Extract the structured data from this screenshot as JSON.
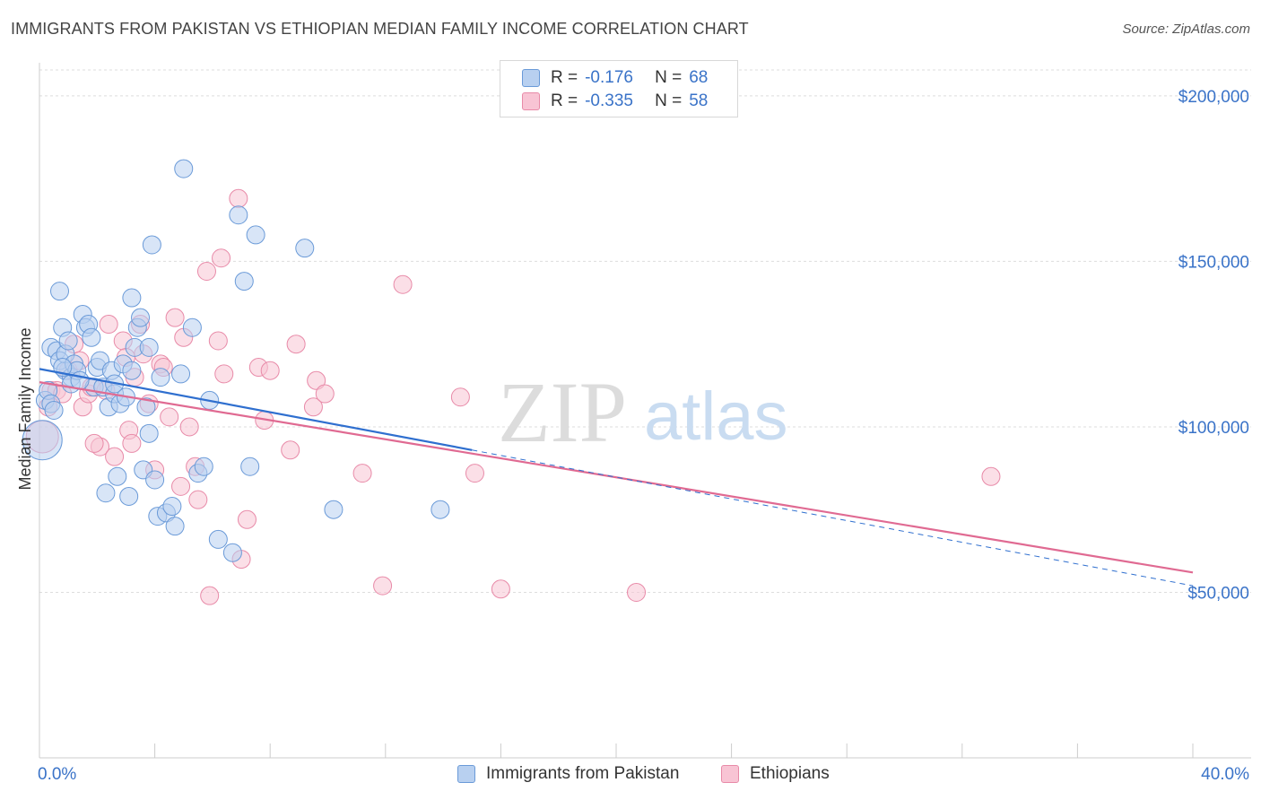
{
  "title": "IMMIGRANTS FROM PAKISTAN VS ETHIOPIAN MEDIAN FAMILY INCOME CORRELATION CHART",
  "source": "Source: ZipAtlas.com",
  "watermark": {
    "zip": "ZIP",
    "atlas": "atlas"
  },
  "legend": {
    "pakistan": {
      "r_label": "R =",
      "r_value": "-0.176",
      "n_label": "N =",
      "n_value": "68"
    },
    "ethiopians": {
      "r_label": "R =",
      "r_value": "-0.335",
      "n_label": "N =",
      "n_value": "58"
    }
  },
  "colors": {
    "pakistan_fill": "#b8d0f0",
    "pakistan_stroke": "#6a9ad8",
    "pakistan_line": "#2f6fcf",
    "ethiopians_fill": "#f8c4d4",
    "ethiopians_stroke": "#e88aa8",
    "ethiopians_line": "#e06a92",
    "axis_text": "#3a73c8"
  },
  "chart_data": {
    "type": "scatter",
    "title": "IMMIGRANTS FROM PAKISTAN VS ETHIOPIAN MEDIAN FAMILY INCOME CORRELATION CHART",
    "xlabel": "",
    "ylabel": "Median Family Income",
    "xlim": [
      0,
      40
    ],
    "ylim": [
      0,
      210000
    ],
    "x_ticks": [
      "0.0%",
      "40.0%"
    ],
    "y_ticks": [
      {
        "value": 50000,
        "label": "$50,000"
      },
      {
        "value": 100000,
        "label": "$100,000"
      },
      {
        "value": 150000,
        "label": "$150,000"
      },
      {
        "value": 200000,
        "label": "$200,000"
      }
    ],
    "grid": true,
    "legend_position": "top-center",
    "series": [
      {
        "name": "Immigrants from Pakistan",
        "r": -0.176,
        "n": 68,
        "trend": {
          "x": [
            0,
            15
          ],
          "y": [
            117500,
            93000
          ]
        },
        "trend_dashed": {
          "x": [
            15,
            40
          ],
          "y": [
            93000,
            52000
          ]
        },
        "points": [
          [
            0.1,
            96000
          ],
          [
            0.2,
            108000
          ],
          [
            0.3,
            111000
          ],
          [
            0.4,
            107000
          ],
          [
            0.4,
            124000
          ],
          [
            0.5,
            105000
          ],
          [
            0.6,
            123000
          ],
          [
            0.7,
            120000
          ],
          [
            0.7,
            141000
          ],
          [
            0.8,
            130000
          ],
          [
            0.9,
            117000
          ],
          [
            0.9,
            122000
          ],
          [
            1.1,
            115000
          ],
          [
            1.1,
            113000
          ],
          [
            1.2,
            119000
          ],
          [
            1.3,
            117000
          ],
          [
            1.5,
            134000
          ],
          [
            1.6,
            130000
          ],
          [
            1.7,
            131000
          ],
          [
            1.8,
            127000
          ],
          [
            1.9,
            112000
          ],
          [
            2.0,
            118000
          ],
          [
            2.1,
            120000
          ],
          [
            2.2,
            112000
          ],
          [
            2.3,
            80000
          ],
          [
            2.4,
            106000
          ],
          [
            2.5,
            117000
          ],
          [
            2.6,
            110000
          ],
          [
            2.6,
            113000
          ],
          [
            2.7,
            85000
          ],
          [
            2.8,
            107000
          ],
          [
            2.9,
            119000
          ],
          [
            3.0,
            109000
          ],
          [
            3.1,
            79000
          ],
          [
            3.2,
            117000
          ],
          [
            3.2,
            139000
          ],
          [
            3.3,
            124000
          ],
          [
            3.4,
            130000
          ],
          [
            3.5,
            133000
          ],
          [
            3.6,
            87000
          ],
          [
            3.7,
            106000
          ],
          [
            3.8,
            124000
          ],
          [
            3.8,
            98000
          ],
          [
            3.9,
            155000
          ],
          [
            4.0,
            84000
          ],
          [
            4.1,
            73000
          ],
          [
            4.2,
            115000
          ],
          [
            4.4,
            74000
          ],
          [
            4.6,
            76000
          ],
          [
            4.7,
            70000
          ],
          [
            4.9,
            116000
          ],
          [
            5.0,
            178000
          ],
          [
            5.3,
            130000
          ],
          [
            5.5,
            86000
          ],
          [
            5.7,
            88000
          ],
          [
            5.9,
            108000
          ],
          [
            6.2,
            66000
          ],
          [
            6.7,
            62000
          ],
          [
            6.9,
            164000
          ],
          [
            7.1,
            144000
          ],
          [
            7.3,
            88000
          ],
          [
            7.5,
            158000
          ],
          [
            9.2,
            154000
          ],
          [
            10.2,
            75000
          ],
          [
            13.9,
            75000
          ],
          [
            1.0,
            126000
          ],
          [
            0.8,
            118000
          ],
          [
            1.4,
            114000
          ]
        ]
      },
      {
        "name": "Ethiopians",
        "r": -0.335,
        "n": 58,
        "trend": {
          "x": [
            0,
            40
          ],
          "y": [
            113500,
            56000
          ]
        },
        "points": [
          [
            0.1,
            97000
          ],
          [
            0.3,
            106000
          ],
          [
            0.4,
            111000
          ],
          [
            0.6,
            111000
          ],
          [
            0.8,
            110000
          ],
          [
            1.0,
            117000
          ],
          [
            1.2,
            125000
          ],
          [
            1.4,
            120000
          ],
          [
            1.5,
            106000
          ],
          [
            1.7,
            110000
          ],
          [
            1.8,
            112000
          ],
          [
            2.1,
            94000
          ],
          [
            2.3,
            111000
          ],
          [
            2.4,
            131000
          ],
          [
            2.6,
            91000
          ],
          [
            2.9,
            126000
          ],
          [
            3.1,
            99000
          ],
          [
            3.2,
            95000
          ],
          [
            3.3,
            115000
          ],
          [
            3.5,
            131000
          ],
          [
            3.6,
            122000
          ],
          [
            3.8,
            107000
          ],
          [
            4.0,
            87000
          ],
          [
            4.2,
            119000
          ],
          [
            4.3,
            118000
          ],
          [
            4.5,
            103000
          ],
          [
            4.7,
            133000
          ],
          [
            4.9,
            82000
          ],
          [
            5.0,
            127000
          ],
          [
            5.2,
            100000
          ],
          [
            5.4,
            88000
          ],
          [
            5.5,
            78000
          ],
          [
            5.8,
            147000
          ],
          [
            5.9,
            49000
          ],
          [
            6.2,
            126000
          ],
          [
            6.3,
            151000
          ],
          [
            6.4,
            116000
          ],
          [
            6.9,
            169000
          ],
          [
            7.0,
            60000
          ],
          [
            7.2,
            72000
          ],
          [
            7.6,
            118000
          ],
          [
            7.8,
            102000
          ],
          [
            8.0,
            117000
          ],
          [
            8.7,
            93000
          ],
          [
            8.9,
            125000
          ],
          [
            9.5,
            106000
          ],
          [
            9.6,
            114000
          ],
          [
            9.9,
            110000
          ],
          [
            11.2,
            86000
          ],
          [
            11.9,
            52000
          ],
          [
            12.6,
            143000
          ],
          [
            14.6,
            109000
          ],
          [
            15.1,
            86000
          ],
          [
            16.0,
            51000
          ],
          [
            20.7,
            50000
          ],
          [
            33.0,
            85000
          ],
          [
            1.9,
            95000
          ],
          [
            3.0,
            121000
          ]
        ]
      }
    ]
  },
  "bottom_legend": {
    "pakistan": "Immigrants from Pakistan",
    "ethiopians": "Ethiopians"
  }
}
